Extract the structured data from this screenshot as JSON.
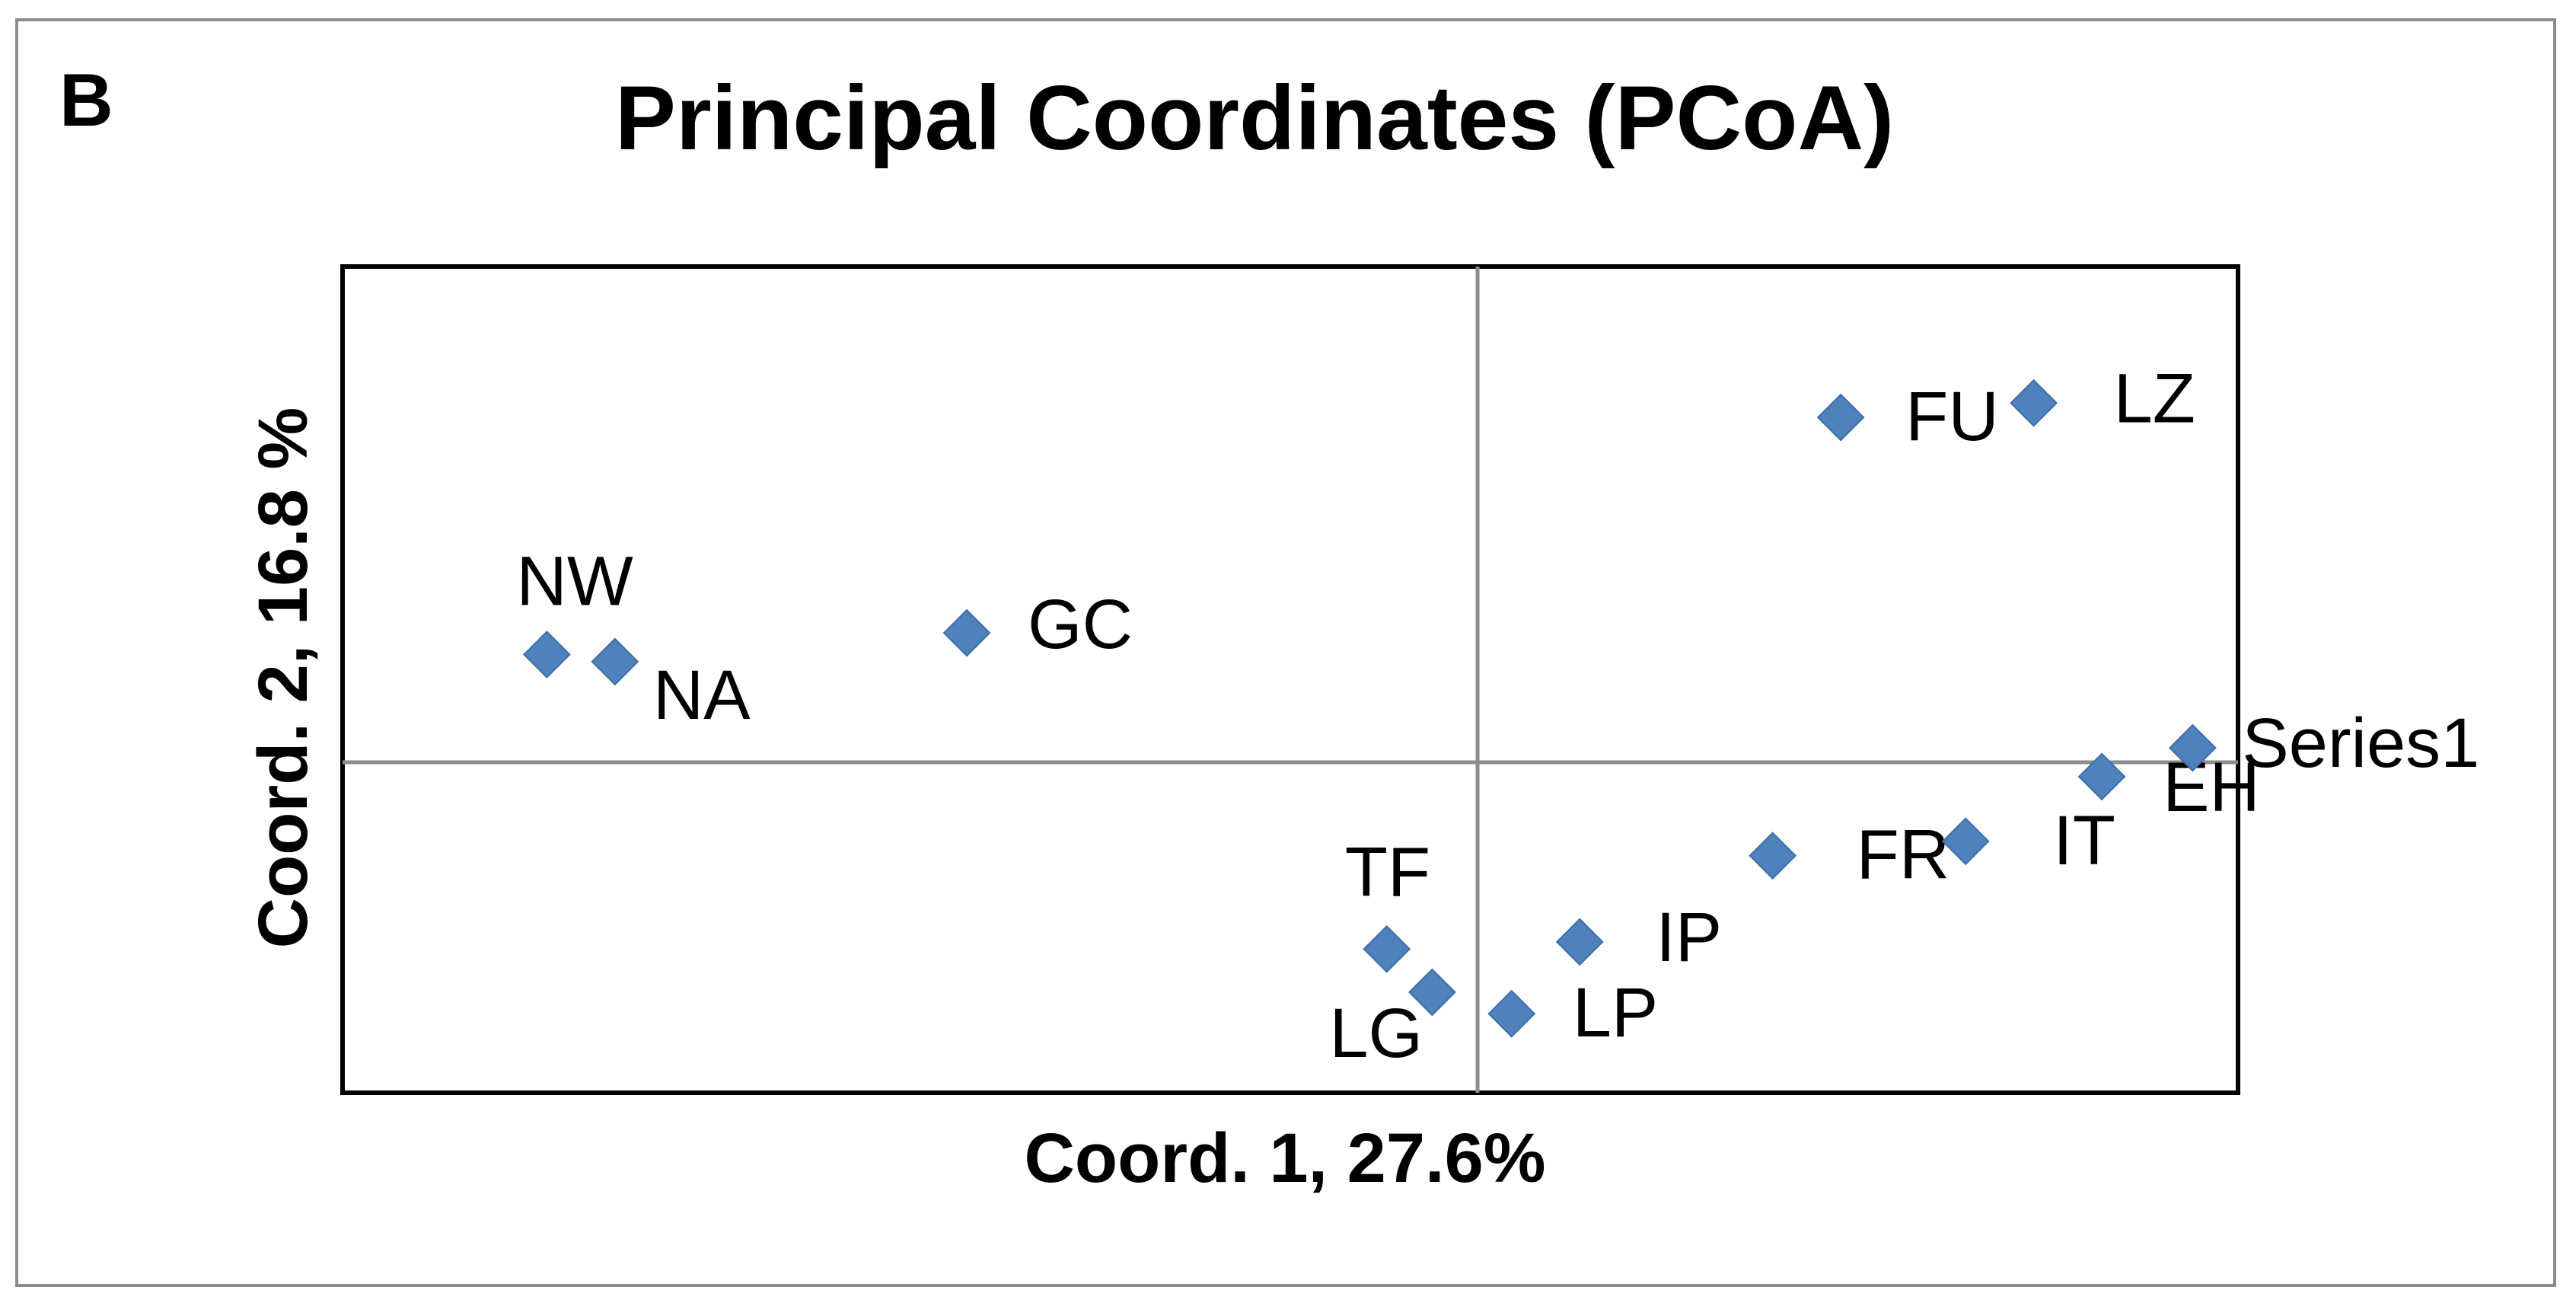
{
  "panel_letter": "B",
  "chart_data": {
    "type": "scatter",
    "title": "Principal Coordinates (PCoA)",
    "xlabel": "Coord. 1, 27.6%",
    "ylabel": "Coord. 2, 16.8 %",
    "grid": false,
    "axes_cross_at_origin": true,
    "marker": "diamond",
    "marker_color": "#4F81BD",
    "xlim": [
      -1.0,
      0.67
    ],
    "ylim": [
      -0.46,
      0.69
    ],
    "points": [
      {
        "label": "NW",
        "x": -0.82,
        "y": 0.15
      },
      {
        "label": "NA",
        "x": -0.76,
        "y": 0.14
      },
      {
        "label": "GC",
        "x": -0.45,
        "y": 0.18
      },
      {
        "label": "TF",
        "x": -0.08,
        "y": -0.26
      },
      {
        "label": "LG",
        "x": -0.04,
        "y": -0.32
      },
      {
        "label": "LP",
        "x": 0.03,
        "y": -0.35
      },
      {
        "label": "IP",
        "x": 0.09,
        "y": -0.25
      },
      {
        "label": "FR",
        "x": 0.26,
        "y": -0.13
      },
      {
        "label": "IT",
        "x": 0.43,
        "y": -0.11
      },
      {
        "label": "EH",
        "x": 0.55,
        "y": -0.02
      },
      {
        "label": "Series1",
        "x": 0.63,
        "y": 0.02
      },
      {
        "label": "FU",
        "x": 0.32,
        "y": 0.48
      },
      {
        "label": "LZ",
        "x": 0.49,
        "y": 0.5
      }
    ]
  }
}
